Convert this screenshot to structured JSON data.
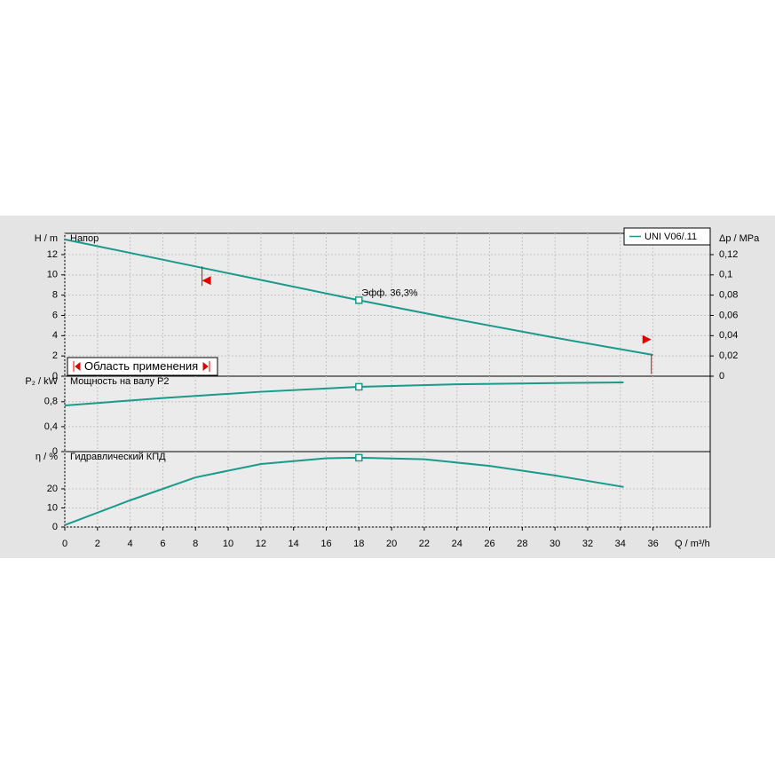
{
  "chart_data": [
    {
      "type": "line",
      "ylabel": "H / m",
      "y2label": "Δp / MPa",
      "panel_label": "Напор",
      "x": [
        0,
        6,
        12,
        18,
        24,
        30,
        36
      ],
      "series": [
        {
          "name": "UNI V06/.11",
          "color": "#1a9a8a",
          "values": [
            13.5,
            11.5,
            9.5,
            7.5,
            5.6,
            3.8,
            2.1
          ]
        }
      ],
      "ylim": [
        0,
        14.1
      ],
      "yticks": [
        0,
        2,
        4,
        6,
        8,
        10,
        12
      ],
      "y2lim": [
        0,
        0.141
      ],
      "y2ticks": [
        0,
        {
          "value": 0.02,
          "label": "0,02"
        },
        {
          "value": 0.04,
          "label": "0,04"
        },
        {
          "value": 0.06,
          "label": "0,06"
        },
        {
          "value": 0.08,
          "label": "0,08"
        },
        {
          "value": 0.1,
          "label": "0,1"
        },
        {
          "value": 0.12,
          "label": "0,12"
        }
      ],
      "duty_point": {
        "x": 18,
        "y": 7.5
      },
      "annotation": "Эфф.  36,3%",
      "application_range": [
        8.4,
        35.9
      ],
      "application_range_label": "Область применения",
      "range_color": "#e00000"
    },
    {
      "type": "line",
      "ylabel": "P₂ / kW",
      "panel_label": "Мощность на валу P2",
      "x": [
        0,
        6,
        12,
        18,
        24,
        30,
        34.2
      ],
      "series": [
        {
          "color": "#1a9a8a",
          "values": [
            0.74,
            0.86,
            0.96,
            1.04,
            1.08,
            1.1,
            1.11
          ]
        }
      ],
      "ylim": [
        0,
        1.21
      ],
      "yticks": [
        0,
        {
          "value": 0.4,
          "label": "0,4"
        },
        {
          "value": 0.8,
          "label": "0,8"
        }
      ],
      "duty_point": {
        "x": 18,
        "y": 1.04
      }
    },
    {
      "type": "line",
      "ylabel": "η / %",
      "panel_label": "Гидравлический КПД",
      "xlabel": "Q / m³/h",
      "x": [
        0,
        4,
        8,
        12,
        16,
        18,
        22,
        26,
        30,
        34.2
      ],
      "series": [
        {
          "color": "#1a9a8a",
          "values": [
            1,
            14,
            26,
            33,
            36,
            36.3,
            35.5,
            32,
            27,
            21
          ]
        }
      ],
      "ylim": [
        0,
        39.5
      ],
      "yticks": [
        0,
        10,
        20
      ],
      "xlim": [
        0,
        39.5
      ],
      "xticks": [
        0,
        2,
        4,
        6,
        8,
        10,
        12,
        14,
        16,
        18,
        20,
        22,
        24,
        26,
        28,
        30,
        32,
        34,
        36
      ],
      "duty_point": {
        "x": 18,
        "y": 36.3
      }
    }
  ]
}
